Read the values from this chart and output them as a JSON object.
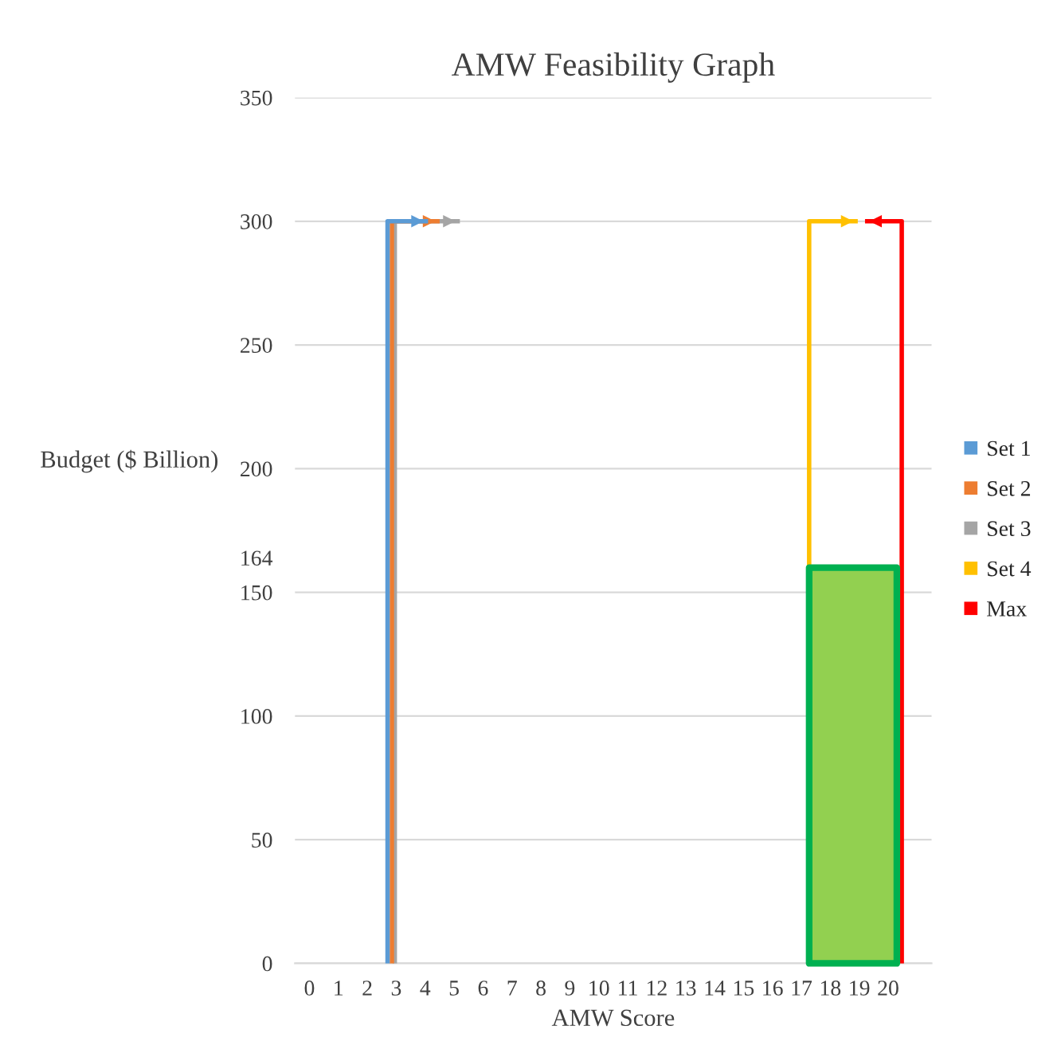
{
  "chart_data": {
    "type": "line",
    "title": "AMW Feasibility Graph",
    "xlabel": "AMW Score",
    "ylabel": "Budget ($ Billion)",
    "xlim": [
      -0.5,
      21.5
    ],
    "xticks": [
      0,
      1,
      2,
      3,
      4,
      5,
      6,
      7,
      8,
      9,
      10,
      11,
      12,
      13,
      14,
      15,
      16,
      17,
      18,
      19,
      20
    ],
    "ylim": [
      0,
      350
    ],
    "yticks": [
      0,
      50,
      100,
      150,
      {
        "value": 164,
        "label": "164"
      },
      200,
      250,
      300,
      350
    ],
    "grid": "y",
    "legend": "right",
    "series": [
      {
        "type": "area",
        "color": "#00b050",
        "colors": [
          "#92d050",
          "#92d050"
        ],
        "x": [
          17.27,
          20.3
        ],
        "values": [
          160,
          160
        ]
      },
      {
        "name": "Set 1",
        "color": "#5b9bd5",
        "x": [
          2.7,
          2.7,
          4.1
        ],
        "values": [
          0,
          300,
          300
        ]
      },
      {
        "name": "Set 2",
        "color": "#ed7d31",
        "x": [
          2.85,
          2.85,
          4.5
        ],
        "values": [
          0,
          300,
          300
        ]
      },
      {
        "name": "Set 3",
        "color": "#a5a5a5",
        "x": [
          2.95,
          2.95,
          5.2
        ],
        "values": [
          0,
          300,
          300
        ]
      },
      {
        "name": "Set 4",
        "color": "#ffc000",
        "x": [
          17.27,
          17.27,
          18.95
        ],
        "values": [
          160,
          300,
          300
        ]
      },
      {
        "name": "Max",
        "color": "#ff0000",
        "x": [
          20.47,
          20.47,
          19.2
        ],
        "values": [
          0,
          300,
          300
        ]
      }
    ]
  }
}
